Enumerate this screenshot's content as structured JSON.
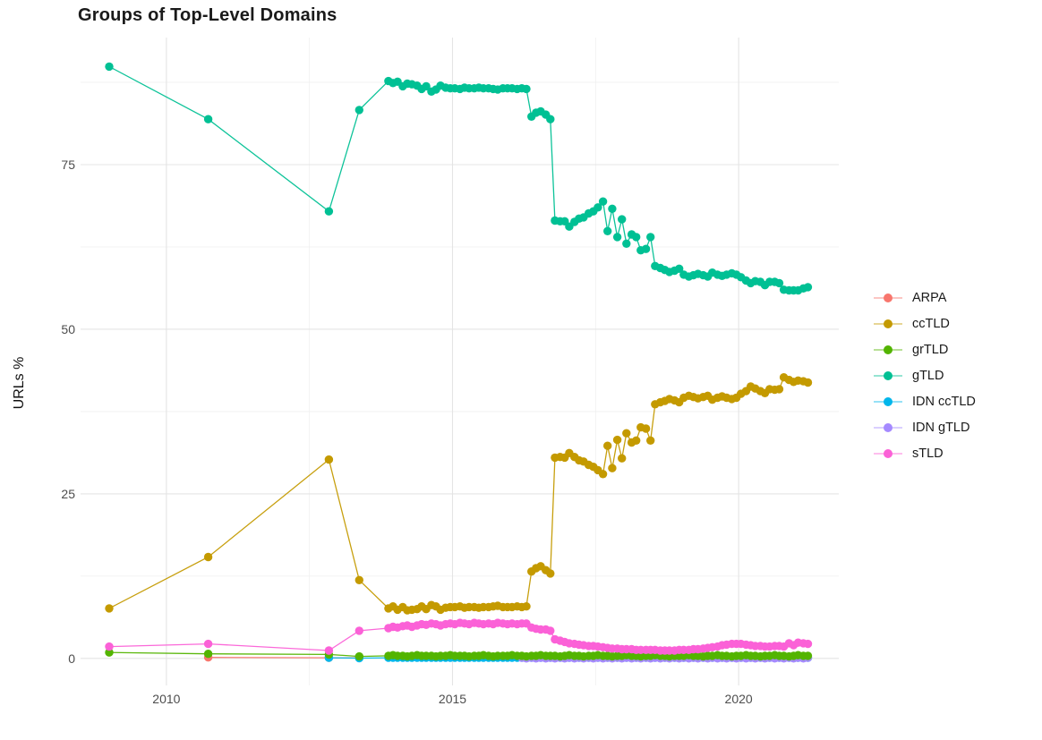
{
  "chart_data": {
    "type": "line",
    "title": "Groups of Top-Level Domains",
    "xlabel": "",
    "ylabel": "URLs %",
    "legend_position": "right",
    "grid": "major+minor",
    "xlim": [
      2008.5,
      2021.75
    ],
    "ylim": [
      -4.1,
      94.3
    ],
    "x_ticks": [
      2010,
      2015,
      2020
    ],
    "x_tick_labels": [
      "2010",
      "2015",
      "2020"
    ],
    "y_ticks": [
      0,
      25,
      50,
      75
    ],
    "y_tick_labels": [
      "0",
      "25",
      "50",
      "75"
    ],
    "x_minor": [
      2012.5,
      2017.5
    ],
    "y_minor": [
      12.5,
      37.5,
      62.5,
      87.5
    ],
    "major_grid_color": "#e4e4e4",
    "minor_grid_color": "#efefef",
    "draw_order": [
      "ARPA",
      "IDN ccTLD",
      "IDN gTLD",
      "grTLD",
      "gTLD",
      "ccTLD",
      "sTLD"
    ],
    "series": [
      {
        "name": "ARPA",
        "color": "#F8766D",
        "x": [
          2010.73,
          2012.84,
          2013.37
        ],
        "y": [
          0.15,
          0.1,
          0.1
        ]
      },
      {
        "name": "ccTLD",
        "color": "#C49A00",
        "x": [
          2009.0,
          2010.73,
          2012.84,
          2013.37,
          2013.88,
          2013.96,
          2014.04,
          2014.13,
          2014.21,
          2014.29,
          2014.38,
          2014.46,
          2014.54,
          2014.63,
          2014.71,
          2014.79,
          2014.88,
          2014.96,
          2015.04,
          2015.13,
          2015.21,
          2015.29,
          2015.38,
          2015.46,
          2015.54,
          2015.63,
          2015.71,
          2015.79,
          2015.88,
          2015.96,
          2016.04,
          2016.13,
          2016.21,
          2016.29,
          2016.38,
          2016.46,
          2016.54,
          2016.63,
          2016.71,
          2016.79,
          2016.88,
          2016.96,
          2017.04,
          2017.13,
          2017.21,
          2017.29,
          2017.38,
          2017.46,
          2017.54,
          2017.63,
          2017.71,
          2017.79,
          2017.88,
          2017.96,
          2018.04,
          2018.13,
          2018.21,
          2018.29,
          2018.38,
          2018.46,
          2018.54,
          2018.63,
          2018.71,
          2018.79,
          2018.88,
          2018.96,
          2019.04,
          2019.13,
          2019.21,
          2019.29,
          2019.38,
          2019.46,
          2019.54,
          2019.63,
          2019.71,
          2019.79,
          2019.88,
          2019.96,
          2020.04,
          2020.13,
          2020.21,
          2020.29,
          2020.38,
          2020.46,
          2020.54,
          2020.63,
          2020.71,
          2020.79,
          2020.88,
          2020.96,
          2021.04,
          2021.13,
          2021.21
        ],
        "y": [
          7.6,
          15.4,
          30.2,
          11.9,
          7.6,
          7.9,
          7.4,
          7.8,
          7.3,
          7.4,
          7.5,
          7.9,
          7.5,
          8.1,
          7.9,
          7.4,
          7.7,
          7.8,
          7.8,
          7.9,
          7.7,
          7.8,
          7.8,
          7.7,
          7.8,
          7.8,
          7.9,
          8.0,
          7.8,
          7.8,
          7.8,
          7.9,
          7.8,
          7.9,
          13.2,
          13.7,
          14.0,
          13.4,
          12.9,
          30.5,
          30.6,
          30.5,
          31.2,
          30.6,
          30.1,
          29.9,
          29.4,
          29.1,
          28.6,
          28.0,
          32.3,
          28.9,
          33.2,
          30.4,
          34.2,
          32.8,
          33.1,
          35.1,
          34.9,
          33.1,
          38.6,
          38.9,
          39.1,
          39.4,
          39.2,
          38.9,
          39.6,
          39.9,
          39.7,
          39.5,
          39.7,
          39.9,
          39.3,
          39.6,
          39.8,
          39.6,
          39.4,
          39.6,
          40.2,
          40.6,
          41.3,
          41.0,
          40.6,
          40.3,
          40.9,
          40.8,
          40.9,
          42.7,
          42.3,
          42.0,
          42.2,
          42.1,
          41.9
        ]
      },
      {
        "name": "grTLD",
        "color": "#53B400",
        "x": [
          2009.0,
          2010.73,
          2012.84,
          2013.37,
          2013.88,
          2013.96,
          2014.04,
          2014.13,
          2014.21,
          2014.29,
          2014.38,
          2014.46,
          2014.54,
          2014.63,
          2014.71,
          2014.79,
          2014.88,
          2014.96,
          2015.04,
          2015.13,
          2015.21,
          2015.29,
          2015.38,
          2015.46,
          2015.54,
          2015.63,
          2015.71,
          2015.79,
          2015.88,
          2015.96,
          2016.04,
          2016.13,
          2016.21,
          2016.29,
          2016.38,
          2016.46,
          2016.54,
          2016.63,
          2016.71,
          2016.79,
          2016.88,
          2016.96,
          2017.04,
          2017.13,
          2017.21,
          2017.29,
          2017.38,
          2017.46,
          2017.54,
          2017.63,
          2017.71,
          2017.79,
          2017.88,
          2017.96,
          2018.04,
          2018.13,
          2018.21,
          2018.29,
          2018.38,
          2018.46,
          2018.54,
          2018.63,
          2018.71,
          2018.79,
          2018.88,
          2018.96,
          2019.04,
          2019.13,
          2019.21,
          2019.29,
          2019.38,
          2019.46,
          2019.54,
          2019.63,
          2019.71,
          2019.79,
          2019.88,
          2019.96,
          2020.04,
          2020.13,
          2020.21,
          2020.29,
          2020.38,
          2020.46,
          2020.54,
          2020.63,
          2020.71,
          2020.79,
          2020.88,
          2020.96,
          2021.04,
          2021.13,
          2021.21
        ],
        "y": [
          0.9,
          0.7,
          0.6,
          0.3,
          0.4,
          0.5,
          0.4,
          0.4,
          0.3,
          0.4,
          0.5,
          0.4,
          0.4,
          0.4,
          0.3,
          0.4,
          0.4,
          0.5,
          0.4,
          0.4,
          0.4,
          0.3,
          0.4,
          0.4,
          0.5,
          0.4,
          0.3,
          0.4,
          0.4,
          0.4,
          0.5,
          0.4,
          0.4,
          0.3,
          0.4,
          0.4,
          0.5,
          0.4,
          0.4,
          0.4,
          0.3,
          0.4,
          0.5,
          0.4,
          0.4,
          0.3,
          0.4,
          0.4,
          0.5,
          0.4,
          0.4,
          0.3,
          0.4,
          0.4,
          0.5,
          0.4,
          0.4,
          0.3,
          0.4,
          0.4,
          0.5,
          0.4,
          0.4,
          0.3,
          0.4,
          0.4,
          0.4,
          0.5,
          0.4,
          0.4,
          0.3,
          0.4,
          0.4,
          0.5,
          0.4,
          0.4,
          0.3,
          0.4,
          0.4,
          0.5,
          0.4,
          0.4,
          0.3,
          0.4,
          0.4,
          0.5,
          0.4,
          0.4,
          0.3,
          0.4,
          0.5,
          0.4,
          0.4
        ]
      },
      {
        "name": "gTLD",
        "color": "#00C094",
        "x": [
          2009.0,
          2010.73,
          2012.84,
          2013.37,
          2013.88,
          2013.96,
          2014.04,
          2014.13,
          2014.21,
          2014.29,
          2014.38,
          2014.46,
          2014.54,
          2014.63,
          2014.71,
          2014.79,
          2014.88,
          2014.96,
          2015.04,
          2015.13,
          2015.21,
          2015.29,
          2015.38,
          2015.46,
          2015.54,
          2015.63,
          2015.71,
          2015.79,
          2015.88,
          2015.96,
          2016.04,
          2016.13,
          2016.21,
          2016.29,
          2016.38,
          2016.46,
          2016.54,
          2016.63,
          2016.71,
          2016.79,
          2016.88,
          2016.96,
          2017.04,
          2017.13,
          2017.21,
          2017.29,
          2017.38,
          2017.46,
          2017.54,
          2017.63,
          2017.71,
          2017.79,
          2017.88,
          2017.96,
          2018.04,
          2018.13,
          2018.21,
          2018.29,
          2018.38,
          2018.46,
          2018.54,
          2018.63,
          2018.71,
          2018.79,
          2018.88,
          2018.96,
          2019.04,
          2019.13,
          2019.21,
          2019.29,
          2019.38,
          2019.46,
          2019.54,
          2019.63,
          2019.71,
          2019.79,
          2019.88,
          2019.96,
          2020.04,
          2020.13,
          2020.21,
          2020.29,
          2020.38,
          2020.46,
          2020.54,
          2020.63,
          2020.71,
          2020.79,
          2020.88,
          2020.96,
          2021.04,
          2021.13,
          2021.21
        ],
        "y": [
          89.9,
          81.9,
          67.9,
          83.3,
          87.7,
          87.4,
          87.6,
          86.9,
          87.3,
          87.2,
          87.0,
          86.5,
          86.9,
          86.1,
          86.4,
          87.0,
          86.7,
          86.6,
          86.6,
          86.5,
          86.7,
          86.6,
          86.6,
          86.7,
          86.6,
          86.6,
          86.5,
          86.4,
          86.6,
          86.6,
          86.6,
          86.5,
          86.6,
          86.5,
          82.3,
          82.9,
          83.1,
          82.6,
          81.9,
          66.5,
          66.4,
          66.4,
          65.6,
          66.3,
          66.8,
          67.0,
          67.6,
          67.9,
          68.5,
          69.4,
          64.9,
          68.3,
          64.0,
          66.7,
          63.0,
          64.4,
          64.0,
          62.0,
          62.2,
          64.0,
          59.6,
          59.3,
          59.0,
          58.7,
          58.9,
          59.2,
          58.3,
          58.0,
          58.2,
          58.4,
          58.2,
          58.0,
          58.6,
          58.3,
          58.1,
          58.3,
          58.5,
          58.3,
          57.9,
          57.4,
          57.0,
          57.3,
          57.2,
          56.7,
          57.2,
          57.2,
          57.0,
          56.0,
          55.9,
          55.9,
          55.9,
          56.2,
          56.4
        ]
      },
      {
        "name": "IDN ccTLD",
        "color": "#00B6EB",
        "x": [
          2012.84,
          2013.37,
          2013.88,
          2013.96,
          2014.04,
          2014.13,
          2014.21,
          2014.29,
          2014.38,
          2014.46,
          2014.54,
          2014.63,
          2014.71,
          2014.79,
          2014.88,
          2014.96,
          2015.04,
          2015.13,
          2015.21,
          2015.29,
          2015.38,
          2015.46,
          2015.54,
          2015.63,
          2015.71,
          2015.79,
          2015.88,
          2015.96,
          2016.04,
          2016.13,
          2016.21,
          2016.29,
          2016.38,
          2016.46,
          2016.54,
          2016.63,
          2016.71,
          2016.79,
          2016.88,
          2016.96,
          2017.04,
          2017.13,
          2017.21,
          2017.29,
          2017.38,
          2017.46,
          2017.54,
          2017.63,
          2017.71,
          2017.79,
          2017.88,
          2017.96,
          2018.04,
          2018.13,
          2018.21,
          2018.29,
          2018.38,
          2018.46,
          2018.54,
          2018.63,
          2018.71,
          2018.79,
          2018.88,
          2018.96,
          2019.04,
          2019.13,
          2019.21,
          2019.29,
          2019.38,
          2019.46,
          2019.54,
          2019.63,
          2019.71,
          2019.79,
          2019.88,
          2019.96,
          2020.04,
          2020.13,
          2020.21,
          2020.29,
          2020.38,
          2020.46,
          2020.54,
          2020.63,
          2020.71,
          2020.79,
          2020.88,
          2020.96,
          2021.04,
          2021.13,
          2021.21
        ],
        "y": [
          0.1,
          0.05,
          0.1,
          0.1,
          0.1,
          0.1,
          0.1,
          0.1,
          0.1,
          0.1,
          0.1,
          0.1,
          0.1,
          0.1,
          0.1,
          0.1,
          0.1,
          0.1,
          0.1,
          0.1,
          0.1,
          0.1,
          0.1,
          0.1,
          0.1,
          0.1,
          0.1,
          0.1,
          0.1,
          0.1,
          0.1,
          0.1,
          0.1,
          0.1,
          0.1,
          0.1,
          0.1,
          0.1,
          0.1,
          0.1,
          0.1,
          0.1,
          0.1,
          0.1,
          0.1,
          0.1,
          0.1,
          0.1,
          0.1,
          0.1,
          0.1,
          0.1,
          0.1,
          0.1,
          0.1,
          0.1,
          0.1,
          0.1,
          0.1,
          0.1,
          0.1,
          0.1,
          0.1,
          0.1,
          0.1,
          0.1,
          0.1,
          0.1,
          0.1,
          0.1,
          0.1,
          0.1,
          0.1,
          0.1,
          0.1,
          0.1,
          0.1,
          0.1,
          0.1,
          0.1,
          0.1,
          0.1,
          0.1,
          0.1,
          0.1,
          0.1,
          0.1,
          0.1,
          0.1,
          0.1,
          0.1
        ]
      },
      {
        "name": "IDN gTLD",
        "color": "#A58AFF",
        "x": [
          2016.21,
          2016.29,
          2016.38,
          2016.46,
          2016.54,
          2016.63,
          2016.71,
          2016.79,
          2016.88,
          2016.96,
          2017.04,
          2017.13,
          2017.21,
          2017.29,
          2017.38,
          2017.46,
          2017.54,
          2017.63,
          2017.71,
          2017.79,
          2017.88,
          2017.96,
          2018.04,
          2018.13,
          2018.21,
          2018.29,
          2018.38,
          2018.46,
          2018.54,
          2018.63,
          2018.71,
          2018.79,
          2018.88,
          2018.96,
          2019.04,
          2019.13,
          2019.21,
          2019.29,
          2019.38,
          2019.46,
          2019.54,
          2019.63,
          2019.71,
          2019.79,
          2019.88,
          2019.96,
          2020.04,
          2020.13,
          2020.21,
          2020.29,
          2020.38,
          2020.46,
          2020.54,
          2020.63,
          2020.71,
          2020.79,
          2020.88,
          2020.96,
          2021.04,
          2021.13,
          2021.21
        ],
        "y": [
          0.1,
          0.0,
          0.1,
          0.0,
          0.1,
          0.0,
          0.1,
          0.0,
          0.1,
          0.0,
          0.1,
          0.0,
          0.1,
          0.0,
          0.1,
          0.0,
          0.1,
          0.0,
          0.1,
          0.0,
          0.1,
          0.0,
          0.1,
          0.0,
          0.1,
          0.0,
          0.1,
          0.0,
          0.1,
          0.0,
          0.1,
          0.0,
          0.1,
          0.0,
          0.1,
          0.0,
          0.1,
          0.0,
          0.1,
          0.0,
          0.1,
          0.0,
          0.1,
          0.0,
          0.1,
          0.0,
          0.1,
          0.0,
          0.1,
          0.0,
          0.1,
          0.0,
          0.1,
          0.0,
          0.1,
          0.0,
          0.1,
          0.0,
          0.1,
          0.0,
          0.1
        ]
      },
      {
        "name": "sTLD",
        "color": "#FB61D7",
        "x": [
          2009.0,
          2010.73,
          2012.84,
          2013.37,
          2013.88,
          2013.96,
          2014.04,
          2014.13,
          2014.21,
          2014.29,
          2014.38,
          2014.46,
          2014.54,
          2014.63,
          2014.71,
          2014.79,
          2014.88,
          2014.96,
          2015.04,
          2015.13,
          2015.21,
          2015.29,
          2015.38,
          2015.46,
          2015.54,
          2015.63,
          2015.71,
          2015.79,
          2015.88,
          2015.96,
          2016.04,
          2016.13,
          2016.21,
          2016.29,
          2016.38,
          2016.46,
          2016.54,
          2016.63,
          2016.71,
          2016.79,
          2016.88,
          2016.96,
          2017.04,
          2017.13,
          2017.21,
          2017.29,
          2017.38,
          2017.46,
          2017.54,
          2017.63,
          2017.71,
          2017.79,
          2017.88,
          2017.96,
          2018.04,
          2018.13,
          2018.21,
          2018.29,
          2018.38,
          2018.46,
          2018.54,
          2018.63,
          2018.71,
          2018.79,
          2018.88,
          2018.96,
          2019.04,
          2019.13,
          2019.21,
          2019.29,
          2019.38,
          2019.46,
          2019.54,
          2019.63,
          2019.71,
          2019.79,
          2019.88,
          2019.96,
          2020.04,
          2020.13,
          2020.21,
          2020.29,
          2020.38,
          2020.46,
          2020.54,
          2020.63,
          2020.71,
          2020.79,
          2020.88,
          2020.96,
          2021.04,
          2021.13,
          2021.21
        ],
        "y": [
          1.8,
          2.2,
          1.2,
          4.2,
          4.6,
          4.8,
          4.7,
          4.9,
          5.0,
          4.8,
          5.0,
          5.2,
          5.1,
          5.3,
          5.2,
          5.0,
          5.2,
          5.3,
          5.2,
          5.4,
          5.3,
          5.2,
          5.4,
          5.3,
          5.2,
          5.3,
          5.2,
          5.4,
          5.3,
          5.2,
          5.3,
          5.2,
          5.3,
          5.3,
          4.7,
          4.5,
          4.4,
          4.4,
          4.2,
          2.9,
          2.7,
          2.5,
          2.3,
          2.2,
          2.1,
          2.0,
          1.9,
          1.9,
          1.8,
          1.7,
          1.6,
          1.5,
          1.5,
          1.4,
          1.4,
          1.4,
          1.3,
          1.3,
          1.3,
          1.3,
          1.3,
          1.2,
          1.2,
          1.2,
          1.2,
          1.3,
          1.3,
          1.3,
          1.4,
          1.4,
          1.5,
          1.6,
          1.7,
          1.8,
          2.0,
          2.1,
          2.2,
          2.2,
          2.2,
          2.1,
          2.0,
          1.9,
          1.9,
          1.8,
          1.8,
          1.9,
          1.9,
          1.8,
          2.3,
          2.0,
          2.4,
          2.3,
          2.2
        ]
      }
    ]
  }
}
